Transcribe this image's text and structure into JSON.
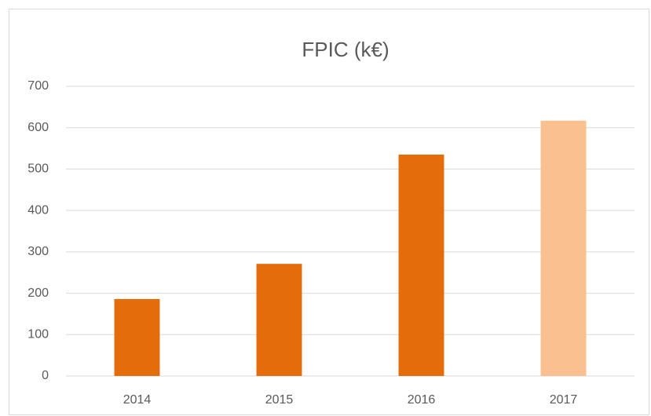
{
  "chart_data": {
    "type": "bar",
    "title": "FPIC (k€)",
    "categories": [
      "2014",
      "2015",
      "2016",
      "2017"
    ],
    "values": [
      186,
      271,
      535,
      617
    ],
    "colors": [
      "#e46c0a",
      "#e46c0a",
      "#e46c0a",
      "#fac090"
    ],
    "ylim": [
      0,
      700
    ],
    "yticks": [
      0,
      100,
      200,
      300,
      400,
      500,
      600,
      700
    ],
    "grid": true
  }
}
